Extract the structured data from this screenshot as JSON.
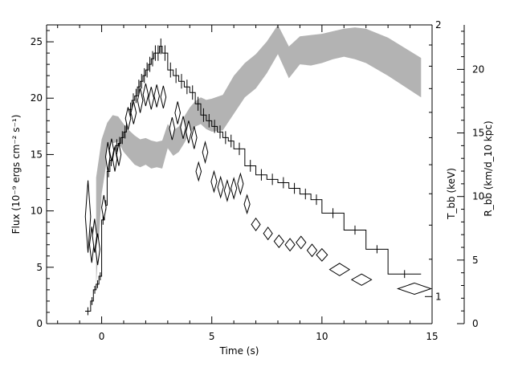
{
  "chart_data": {
    "type": "line",
    "title": "",
    "xlabel": "Time (s)",
    "ylabel_left": "Flux (10⁻⁹ ergs cm⁻² s⁻¹)",
    "ylabel_right_inner": "T_bb (keV)",
    "ylabel_right_outer": "R_bb (km/d_10 kpc)",
    "xlim": [
      -2.5,
      15
    ],
    "ylim_left": [
      0,
      26.5
    ],
    "ylim_right_outer": [
      0,
      23.5
    ],
    "x_ticks": [
      0,
      5,
      10,
      15
    ],
    "x_tick_labels": [
      "0",
      "5",
      "10",
      "15"
    ],
    "y_left_ticks": [
      0,
      5,
      10,
      15,
      20,
      25
    ],
    "y_left_tick_labels": [
      "0",
      "5",
      "10",
      "15",
      "20",
      "25"
    ],
    "y_right_outer_ticks": [
      0,
      5,
      10,
      15,
      20
    ],
    "y_right_outer_tick_labels": [
      "0",
      "5",
      "10",
      "15",
      "20"
    ],
    "y_right_inner_ticks": [
      1,
      2
    ],
    "y_right_inner_tick_labels": [
      "1",
      "2"
    ],
    "y_right_inner_tick_positions_left_units": [
      2.4,
      26.5
    ],
    "grid": false,
    "colors": {
      "band": "#b3b3b3",
      "line": "#000000"
    },
    "series": [
      {
        "kind": "flux_histogram",
        "x": [
          -0.75,
          -0.5,
          -0.375,
          -0.25,
          -0.125,
          0,
          0.125,
          0.25,
          0.375,
          0.5,
          0.625,
          0.75,
          0.875,
          1.0,
          1.125,
          1.25,
          1.375,
          1.5,
          1.625,
          1.75,
          1.875,
          2.0,
          2.125,
          2.25,
          2.375,
          2.5,
          2.625,
          2.75,
          3.0,
          3.25,
          3.5,
          3.75,
          4.0,
          4.25,
          4.5,
          4.75,
          5.0,
          5.25,
          5.5,
          5.75,
          6.0,
          6.5,
          7.0,
          7.5,
          8.0,
          8.5,
          9.0,
          9.5,
          10.0,
          11.0,
          12.0,
          13.0,
          14.5
        ],
        "y": [
          1.1,
          2.0,
          3.0,
          3.5,
          4.2,
          9.2,
          10.5,
          13.5,
          14.5,
          15.0,
          15.8,
          16.0,
          16.5,
          17.0,
          18.5,
          19.0,
          19.8,
          20.2,
          21.0,
          21.5,
          22.0,
          22.5,
          23.0,
          23.5,
          24.0,
          24.0,
          24.6,
          24.0,
          22.5,
          22.0,
          21.5,
          21.0,
          20.5,
          19.5,
          18.5,
          18.0,
          17.5,
          17.0,
          16.5,
          16.2,
          15.5,
          14.0,
          13.2,
          12.8,
          12.5,
          12.0,
          11.5,
          11.0,
          9.8,
          8.3,
          6.6,
          4.4
        ]
      },
      {
        "kind": "kT_diamonds",
        "points": [
          {
            "x": -0.62,
            "y": 9.5,
            "dx": 0.12,
            "dy": 3.2
          },
          {
            "x": -0.45,
            "y": 7.0,
            "dx": 0.1,
            "dy": 1.6
          },
          {
            "x": -0.32,
            "y": 7.8,
            "dx": 0.1,
            "dy": 1.5
          },
          {
            "x": -0.18,
            "y": 6.6,
            "dx": 0.1,
            "dy": 1.4
          },
          {
            "x": 0.1,
            "y": 10.3,
            "dx": 0.1,
            "dy": 1.1
          },
          {
            "x": 0.28,
            "y": 14.8,
            "dx": 0.1,
            "dy": 1.3
          },
          {
            "x": 0.45,
            "y": 15.4,
            "dx": 0.1,
            "dy": 1.0
          },
          {
            "x": 0.6,
            "y": 14.6,
            "dx": 0.1,
            "dy": 1.1
          },
          {
            "x": 0.78,
            "y": 15.0,
            "dx": 0.1,
            "dy": 1.0
          },
          {
            "x": 1.2,
            "y": 18.2,
            "dx": 0.12,
            "dy": 1.0
          },
          {
            "x": 1.45,
            "y": 18.7,
            "dx": 0.12,
            "dy": 1.0
          },
          {
            "x": 1.75,
            "y": 19.8,
            "dx": 0.12,
            "dy": 1.1
          },
          {
            "x": 2.0,
            "y": 20.3,
            "dx": 0.12,
            "dy": 1.0
          },
          {
            "x": 2.25,
            "y": 20.0,
            "dx": 0.12,
            "dy": 1.0
          },
          {
            "x": 2.5,
            "y": 20.2,
            "dx": 0.12,
            "dy": 1.0
          },
          {
            "x": 2.8,
            "y": 20.1,
            "dx": 0.12,
            "dy": 1.0
          },
          {
            "x": 3.2,
            "y": 17.3,
            "dx": 0.12,
            "dy": 1.0
          },
          {
            "x": 3.45,
            "y": 18.7,
            "dx": 0.12,
            "dy": 1.0
          },
          {
            "x": 3.7,
            "y": 17.4,
            "dx": 0.12,
            "dy": 1.0
          },
          {
            "x": 3.95,
            "y": 17.0,
            "dx": 0.12,
            "dy": 1.0
          },
          {
            "x": 4.2,
            "y": 16.5,
            "dx": 0.12,
            "dy": 1.0
          },
          {
            "x": 4.4,
            "y": 13.5,
            "dx": 0.12,
            "dy": 0.8
          },
          {
            "x": 4.7,
            "y": 15.2,
            "dx": 0.12,
            "dy": 0.9
          },
          {
            "x": 5.1,
            "y": 12.6,
            "dx": 0.13,
            "dy": 0.9
          },
          {
            "x": 5.4,
            "y": 12.1,
            "dx": 0.13,
            "dy": 0.9
          },
          {
            "x": 5.7,
            "y": 11.8,
            "dx": 0.13,
            "dy": 0.9
          },
          {
            "x": 6.0,
            "y": 12.0,
            "dx": 0.13,
            "dy": 0.9
          },
          {
            "x": 6.3,
            "y": 12.4,
            "dx": 0.13,
            "dy": 0.9
          },
          {
            "x": 6.6,
            "y": 10.6,
            "dx": 0.13,
            "dy": 0.8
          },
          {
            "x": 7.0,
            "y": 8.8,
            "dx": 0.2,
            "dy": 0.55
          },
          {
            "x": 7.55,
            "y": 8.0,
            "dx": 0.2,
            "dy": 0.55
          },
          {
            "x": 8.05,
            "y": 7.3,
            "dx": 0.22,
            "dy": 0.55
          },
          {
            "x": 8.55,
            "y": 7.0,
            "dx": 0.22,
            "dy": 0.55
          },
          {
            "x": 9.05,
            "y": 7.2,
            "dx": 0.22,
            "dy": 0.55
          },
          {
            "x": 9.55,
            "y": 6.5,
            "dx": 0.22,
            "dy": 0.55
          },
          {
            "x": 10.0,
            "y": 6.1,
            "dx": 0.25,
            "dy": 0.55
          },
          {
            "x": 10.8,
            "y": 4.8,
            "dx": 0.45,
            "dy": 0.55
          },
          {
            "x": 11.8,
            "y": 3.9,
            "dx": 0.45,
            "dy": 0.5
          },
          {
            "x": 14.2,
            "y": 3.1,
            "dx": 0.75,
            "dy": 0.5
          }
        ]
      },
      {
        "kind": "Rbb_band",
        "x": [
          -0.25,
          0.0,
          0.25,
          0.5,
          0.75,
          1.0,
          1.25,
          1.5,
          1.75,
          2.0,
          2.25,
          2.5,
          2.75,
          3.0,
          3.25,
          3.5,
          3.75,
          4.0,
          4.25,
          4.5,
          4.75,
          5.0,
          5.5,
          6.0,
          6.5,
          7.0,
          7.5,
          8.0,
          8.5,
          9.0,
          9.5,
          10.0,
          10.5,
          11.0,
          11.5,
          12.0,
          13.0,
          14.5
        ],
        "lower": [
          3.0,
          10.2,
          13.0,
          14.2,
          14.3,
          13.5,
          13.0,
          12.5,
          12.3,
          12.5,
          12.2,
          12.3,
          12.2,
          13.8,
          13.2,
          13.5,
          14.2,
          15.0,
          15.5,
          15.7,
          15.3,
          15.1,
          15.2,
          16.5,
          17.8,
          18.5,
          19.7,
          21.2,
          19.3,
          20.4,
          20.3,
          20.5,
          20.8,
          21.0,
          20.8,
          20.5,
          19.5,
          17.8
        ],
        "upper": [
          11.5,
          14.5,
          15.8,
          16.4,
          16.3,
          15.7,
          15.2,
          14.8,
          14.5,
          14.6,
          14.4,
          14.3,
          14.4,
          15.7,
          15.2,
          15.5,
          16.3,
          17.0,
          17.5,
          17.8,
          17.6,
          17.7,
          18.0,
          19.5,
          20.5,
          21.2,
          22.2,
          23.5,
          21.8,
          22.6,
          22.7,
          22.8,
          23.0,
          23.2,
          23.3,
          23.2,
          22.5,
          20.9
        ]
      }
    ]
  }
}
